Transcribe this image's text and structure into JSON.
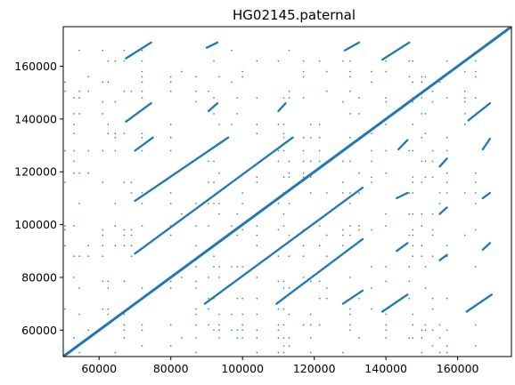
{
  "chart_data": {
    "type": "scatter",
    "title": "HG02145.paternal",
    "xlabel": "",
    "ylabel": "",
    "xlim": [
      50000,
      175000
    ],
    "ylim": [
      50000,
      175000
    ],
    "grid": false,
    "legend": "none",
    "color": "#1f77b4",
    "x_ticks": [
      60000,
      80000,
      100000,
      120000,
      140000,
      160000
    ],
    "y_ticks": [
      60000,
      80000,
      100000,
      120000,
      140000,
      160000
    ],
    "x_tick_labels": [
      "60000",
      "80000",
      "100000",
      "120000",
      "140000",
      "160000"
    ],
    "y_tick_labels": [
      "60000",
      "80000",
      "100000",
      "120000",
      "140000",
      "160000"
    ],
    "segments": [
      {
        "x": [
          50000,
          175000
        ],
        "y": [
          50000,
          175000
        ]
      },
      {
        "x": [
          70000,
          114000
        ],
        "y": [
          89000,
          133000
        ]
      },
      {
        "x": [
          70000,
          96000
        ],
        "y": [
          109000,
          133000
        ]
      },
      {
        "x": [
          70000,
          75000
        ],
        "y": [
          128000,
          133000
        ]
      },
      {
        "x": [
          89500,
          133500
        ],
        "y": [
          70000,
          114000
        ]
      },
      {
        "x": [
          109500,
          133500
        ],
        "y": [
          70000,
          94500
        ]
      },
      {
        "x": [
          128000,
          133500
        ],
        "y": [
          70000,
          75000
        ]
      },
      {
        "x": [
          67500,
          74500
        ],
        "y": [
          163000,
          169000
        ]
      },
      {
        "x": [
          67500,
          74500
        ],
        "y": [
          139000,
          146000
        ]
      },
      {
        "x": [
          90000,
          93000
        ],
        "y": [
          167000,
          169000
        ]
      },
      {
        "x": [
          90500,
          93000
        ],
        "y": [
          143000,
          146000
        ]
      },
      {
        "x": [
          110000,
          112000
        ],
        "y": [
          143000,
          146000
        ]
      },
      {
        "x": [
          128500,
          132500
        ],
        "y": [
          166000,
          169000
        ]
      },
      {
        "x": [
          139000,
          146500
        ],
        "y": [
          162500,
          169000
        ]
      },
      {
        "x": [
          139000,
          146000
        ],
        "y": [
          67000,
          73500
        ]
      },
      {
        "x": [
          162500,
          169500
        ],
        "y": [
          67000,
          73500
        ]
      },
      {
        "x": [
          163000,
          169000
        ],
        "y": [
          139500,
          146000
        ]
      },
      {
        "x": [
          167000,
          169000
        ],
        "y": [
          90500,
          93000
        ]
      },
      {
        "x": [
          167000,
          169000
        ],
        "y": [
          110000,
          112000
        ]
      },
      {
        "x": [
          167000,
          169000
        ],
        "y": [
          128500,
          132500
        ]
      },
      {
        "x": [
          143000,
          146000
        ],
        "y": [
          90000,
          93000
        ]
      },
      {
        "x": [
          143000,
          146000
        ],
        "y": [
          110000,
          112000
        ]
      },
      {
        "x": [
          143500,
          146000
        ],
        "y": [
          128500,
          132000
        ]
      },
      {
        "x": [
          155000,
          157000
        ],
        "y": [
          86500,
          88500
        ]
      },
      {
        "x": [
          155000,
          157000
        ],
        "y": [
          104000,
          106500
        ]
      },
      {
        "x": [
          155000,
          157000
        ],
        "y": [
          122000,
          125000
        ]
      }
    ],
    "scatter_columns": [
      50500,
      53000,
      54500,
      57000,
      61000,
      62500,
      64500,
      67000,
      69000,
      72000,
      80000,
      83000,
      87000,
      90500,
      92000,
      93500,
      97000,
      98500,
      100000,
      104000,
      110000,
      111500,
      113000,
      117000,
      119000,
      121500,
      123500,
      128000,
      130000,
      132500,
      136000,
      140000,
      146500,
      147500,
      150000,
      151000,
      153000,
      155000,
      157000,
      162000,
      165000
    ],
    "scatter_rows": [
      51500,
      54000,
      57000,
      60000,
      62000,
      66000,
      68000,
      72000,
      76000,
      78500,
      80000,
      84000,
      88000,
      92000,
      96000,
      98000,
      99500,
      104000,
      108000,
      112000,
      116000,
      118000,
      119500,
      124000,
      128000,
      133000,
      134500,
      138000,
      142000,
      146500,
      148000,
      150500,
      154000,
      156000,
      158000,
      162000,
      166000
    ]
  }
}
